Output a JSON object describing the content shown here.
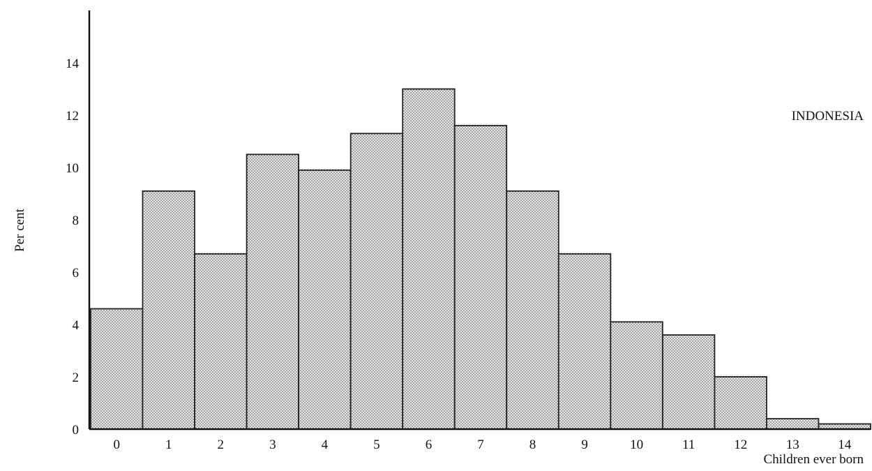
{
  "chart_data": {
    "type": "bar",
    "title": "INDONESIA",
    "xlabel": "Children ever born",
    "ylabel": "Per cent",
    "categories": [
      "0",
      "1",
      "2",
      "3",
      "4",
      "5",
      "6",
      "7",
      "8",
      "9",
      "10",
      "11",
      "12",
      "13",
      "14"
    ],
    "values": [
      4.6,
      9.1,
      6.7,
      10.5,
      9.9,
      11.3,
      13.0,
      11.6,
      9.1,
      6.7,
      4.1,
      3.6,
      2.0,
      0.4,
      0.2
    ],
    "ylim": [
      0,
      16
    ],
    "yticks": [
      "0",
      "2",
      "4",
      "6",
      "8",
      "10",
      "12",
      "14"
    ],
    "grid": false,
    "legend": "none",
    "colors": {
      "bar_fill": "#d9d9d9",
      "bar_stroke": "#222222",
      "axis": "#111111"
    }
  }
}
